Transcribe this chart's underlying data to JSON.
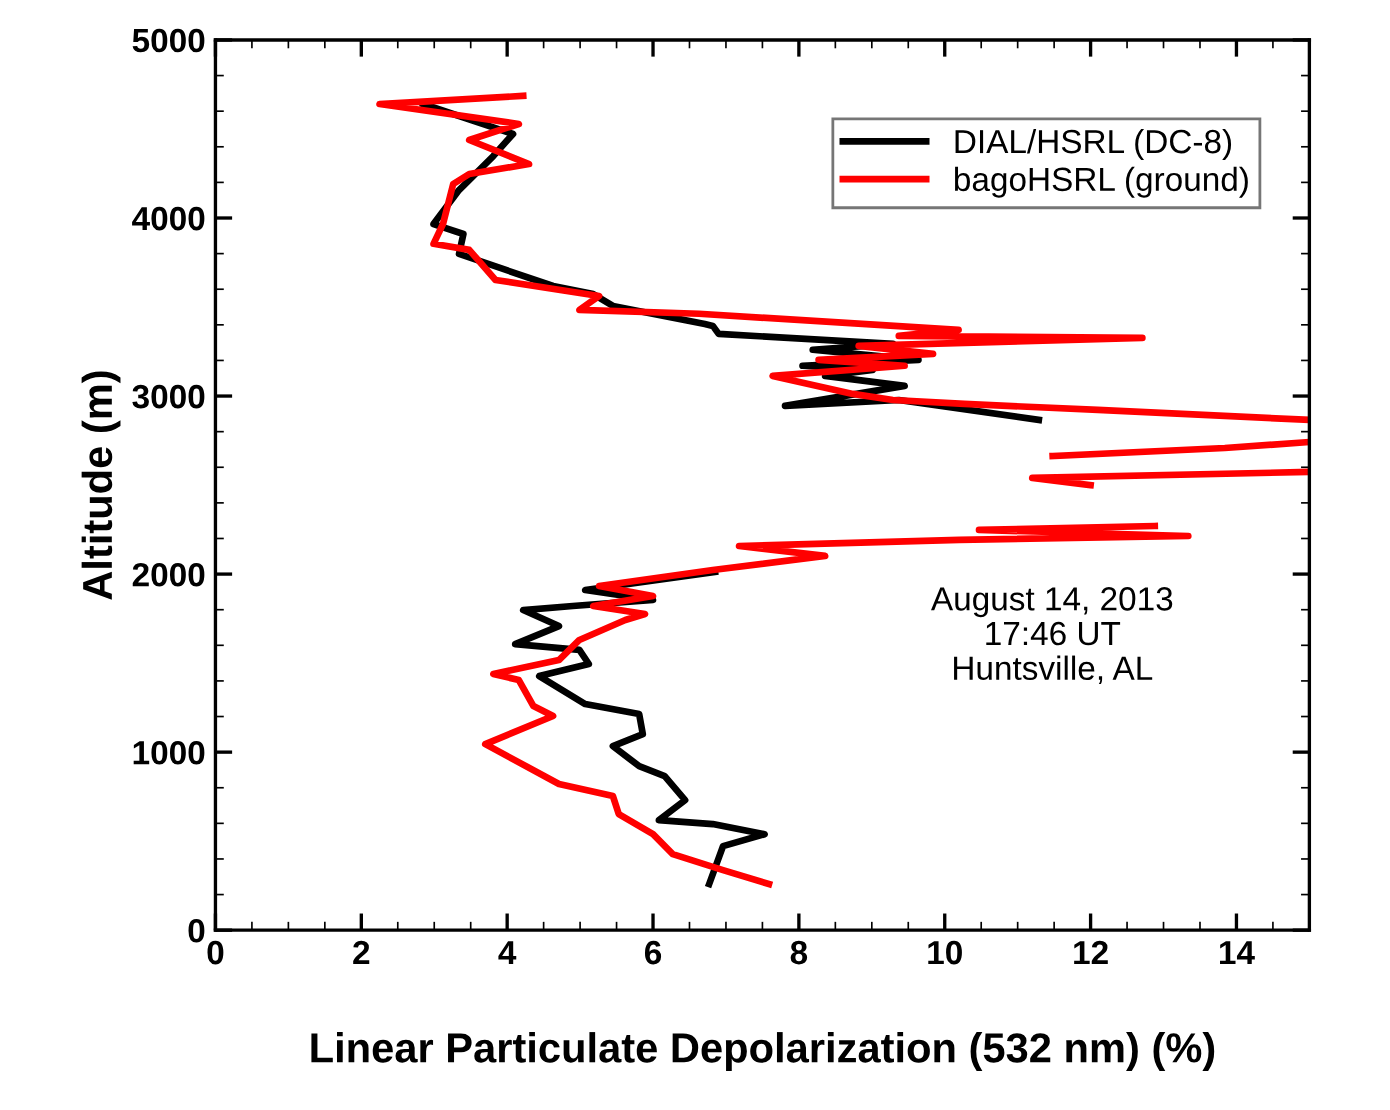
{
  "chart_data": {
    "type": "line",
    "xlabel": "Linear Particulate Depolarization (532 nm) (%)",
    "ylabel": "Altitude (m)",
    "xlim": [
      0,
      15
    ],
    "xticks": [
      0,
      2,
      4,
      6,
      8,
      10,
      12,
      14
    ],
    "ylim": [
      0,
      5000
    ],
    "yticks": [
      0,
      1000,
      2000,
      3000,
      4000,
      5000
    ],
    "legend": "top right",
    "grid": false,
    "marker": "none",
    "line_style": "solid",
    "annotations": [
      "August 14, 2013\n17:46 UT\nHuntsville, AL"
    ],
    "series": [
      {
        "name": "DIAL/HSRL (DC-8)",
        "color": "#000000",
        "x": [
          6.77,
          6.96,
          7.53,
          6.82,
          6.08,
          6.44,
          6.16,
          5.81,
          5.45,
          5.86,
          5.81,
          5.07,
          4.44,
          5.12,
          4.99,
          4.11,
          4.71,
          4.22,
          4.9,
          6.0,
          5.07,
          6.85,
          null,
          11.29,
          9.37,
          7.81,
          9.45,
          8.36,
          9.01,
          8.05,
          9.64,
          8.19,
          9.29,
          6.9,
          6.82,
          6.71,
          5.45,
          5.18,
          4.63,
          3.34,
          3.4,
          2.99,
          3.34,
          3.81,
          4.08,
          2.85
        ],
        "values": [
          259,
          472,
          539,
          596,
          618,
          730,
          865,
          921,
          1034,
          1101,
          1214,
          1270,
          1427,
          1495,
          1574,
          1607,
          1708,
          1798,
          1821,
          1855,
          1911,
          2012,
          null,
          2866,
          2978,
          2945,
          3057,
          3113,
          3147,
          3170,
          3203,
          3260,
          3293,
          3349,
          3394,
          3405,
          3506,
          3573,
          3618,
          3798,
          3910,
          3966,
          4157,
          4348,
          4472,
          4640
        ]
      },
      {
        "name": "bagoHSRL (ground)",
        "color": "#ff0000",
        "x": [
          7.59,
          6.96,
          6.27,
          6.0,
          5.53,
          5.45,
          4.71,
          3.7,
          4.63,
          4.36,
          4.16,
          3.81,
          4.71,
          4.99,
          5.62,
          5.89,
          5.18,
          6.0,
          5.26,
          6.82,
          8.36,
          7.18,
          10.2,
          13.34,
          10.47,
          12.88,
          null,
          12.0,
          11.2,
          15.0,
          null,
          11.48,
          13.84,
          15.0,
          null,
          15.0,
          12.1,
          10.27,
          9.29,
          8.74,
          7.64,
          9.45,
          8.27,
          9.84,
          8.82,
          12.71,
          9.37,
          10.19,
          6.63,
          4.99,
          5.26,
          3.84,
          3.48,
          2.99,
          3.12,
          3.26,
          3.48,
          4.3,
          3.48,
          4.16,
          2.25,
          4.22
        ],
        "values": [
          259,
          337,
          427,
          539,
          652,
          753,
          821,
          1045,
          1203,
          1259,
          1405,
          1439,
          1517,
          1630,
          1742,
          1776,
          1821,
          1877,
          1933,
          2023,
          2102,
          2158,
          2192,
          2214,
          2248,
          2270,
          null,
          2500,
          2540,
          2574,
          null,
          2663,
          2708,
          2742,
          null,
          2866,
          2922,
          2956,
          2978,
          3012,
          3113,
          3170,
          3203,
          3237,
          3282,
          3327,
          3338,
          3372,
          3462,
          3484,
          3562,
          3652,
          3821,
          3855,
          3966,
          4191,
          4247,
          4303,
          4438,
          4528,
          4640,
          4686
        ]
      }
    ]
  }
}
